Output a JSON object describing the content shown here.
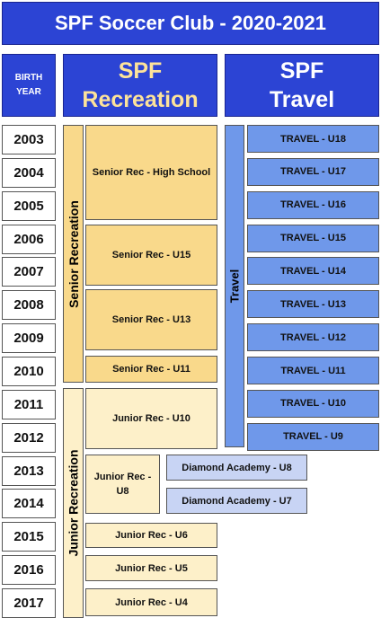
{
  "title": "SPF Soccer Club - 2020-2021",
  "header": {
    "birth_year": "BIRTH YEAR",
    "recreation": "SPF Recreation",
    "travel": "SPF Travel"
  },
  "years": [
    "2003",
    "2004",
    "2005",
    "2006",
    "2007",
    "2008",
    "2009",
    "2010",
    "2011",
    "2012",
    "2013",
    "2014",
    "2015",
    "2016",
    "2017"
  ],
  "groups": {
    "senior": "Senior Recreation",
    "junior": "Junior Recreation",
    "travel": "Travel"
  },
  "recreation_teams": [
    "Senior Rec - High School",
    "Senior Rec - U15",
    "Senior Rec - U13",
    "Senior Rec - U11",
    "Junior Rec - U10",
    "Junior Rec - U8",
    "Junior Rec - U6",
    "Junior Rec - U5",
    "Junior Rec - U4"
  ],
  "diamond_teams": [
    "Diamond Academy - U8",
    "Diamond Academy - U7"
  ],
  "travel_teams": [
    "TRAVEL - U18",
    "TRAVEL - U17",
    "TRAVEL - U16",
    "TRAVEL - U15",
    "TRAVEL - U14",
    "TRAVEL - U13",
    "TRAVEL - U12",
    "TRAVEL - U11",
    "TRAVEL - U10",
    "TRAVEL - U9"
  ]
}
